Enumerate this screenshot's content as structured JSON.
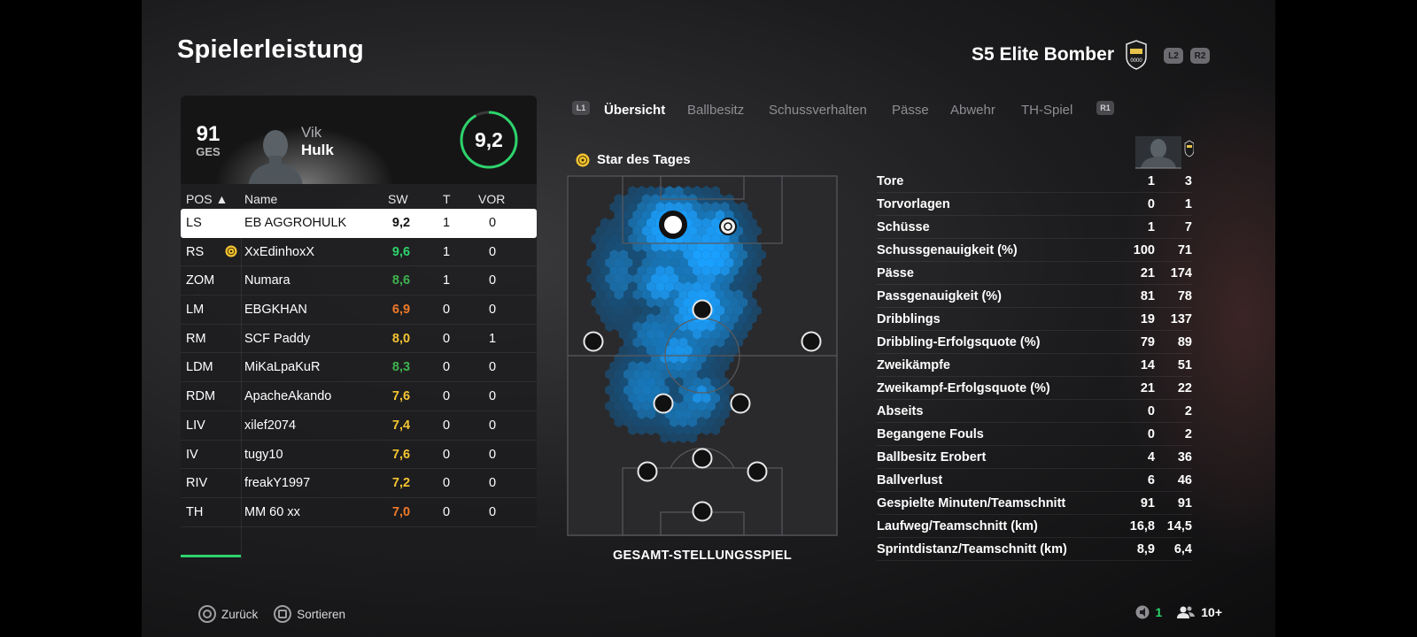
{
  "header": {
    "title": "Spielerleistung",
    "team_name": "S5 Elite Bomber",
    "tag_left": "L2",
    "tag_right": "R2"
  },
  "player_card": {
    "overall": "91",
    "overall_label": "GES",
    "first_name": "Vik",
    "last_name": "Hulk",
    "rating": "9,2",
    "rating_fraction": 0.92,
    "rating_color": "#2dd36b"
  },
  "table": {
    "headers": {
      "pos": "POS ▲",
      "name": "Name",
      "sw": "SW",
      "t": "T",
      "vor": "VOR"
    },
    "rows": [
      {
        "pos": "LS",
        "name": "EB AGGROHULK",
        "sw": "9,2",
        "t": "1",
        "vor": "0",
        "sw_color": "#111111",
        "selected": true,
        "star": false
      },
      {
        "pos": "RS",
        "name": "XxEdinhoxX",
        "sw": "9,6",
        "t": "1",
        "vor": "0",
        "sw_color": "#2dd36b",
        "selected": false,
        "star": true
      },
      {
        "pos": "ZOM",
        "name": "Numara",
        "sw": "8,6",
        "t": "1",
        "vor": "0",
        "sw_color": "#3fb24f",
        "selected": false,
        "star": false
      },
      {
        "pos": "LM",
        "name": "EBGKHAN",
        "sw": "6,9",
        "t": "0",
        "vor": "0",
        "sw_color": "#f07a2a",
        "selected": false,
        "star": false
      },
      {
        "pos": "RM",
        "name": "SCF Paddy",
        "sw": "8,0",
        "t": "0",
        "vor": "1",
        "sw_color": "#f4c431",
        "selected": false,
        "star": false
      },
      {
        "pos": "LDM",
        "name": "MiKaLpaKuR",
        "sw": "8,3",
        "t": "0",
        "vor": "0",
        "sw_color": "#3fb24f",
        "selected": false,
        "star": false
      },
      {
        "pos": "RDM",
        "name": "ApacheAkando",
        "sw": "7,6",
        "t": "0",
        "vor": "0",
        "sw_color": "#f4c431",
        "selected": false,
        "star": false
      },
      {
        "pos": "LIV",
        "name": "xilef2074",
        "sw": "7,4",
        "t": "0",
        "vor": "0",
        "sw_color": "#f4c431",
        "selected": false,
        "star": false
      },
      {
        "pos": "IV",
        "name": "tugy10",
        "sw": "7,6",
        "t": "0",
        "vor": "0",
        "sw_color": "#f4c431",
        "selected": false,
        "star": false
      },
      {
        "pos": "RIV",
        "name": "freakY1997",
        "sw": "7,2",
        "t": "0",
        "vor": "0",
        "sw_color": "#f4c431",
        "selected": false,
        "star": false
      },
      {
        "pos": "TH",
        "name": "MM 60 xx",
        "sw": "7,0",
        "t": "0",
        "vor": "0",
        "sw_color": "#f07a2a",
        "selected": false,
        "star": false
      }
    ]
  },
  "tabs": {
    "tag_left": "L1",
    "tag_right": "R1",
    "items": [
      "Übersicht",
      "Ballbesitz",
      "Schussverhalten",
      "Pässe",
      "Abwehr",
      "TH-Spiel"
    ],
    "active": 0
  },
  "star_of_day": "Star des Tages",
  "pitch_caption": "GESAMT-STELLUNGSSPIEL",
  "stats": [
    {
      "label": "Tore",
      "player": "1",
      "team": "3"
    },
    {
      "label": "Torvorlagen",
      "player": "0",
      "team": "1"
    },
    {
      "label": "Schüsse",
      "player": "1",
      "team": "7"
    },
    {
      "label": "Schussgenauigkeit (%)",
      "player": "100",
      "team": "71"
    },
    {
      "label": "Pässe",
      "player": "21",
      "team": "174"
    },
    {
      "label": "Passgenauigkeit (%)",
      "player": "81",
      "team": "78"
    },
    {
      "label": "Dribblings",
      "player": "19",
      "team": "137"
    },
    {
      "label": "Dribbling-Erfolgsquote (%)",
      "player": "79",
      "team": "89"
    },
    {
      "label": "Zweikämpfe",
      "player": "14",
      "team": "51"
    },
    {
      "label": "Zweikampf-Erfolgsquote (%)",
      "player": "21",
      "team": "22"
    },
    {
      "label": "Abseits",
      "player": "0",
      "team": "2"
    },
    {
      "label": "Begangene Fouls",
      "player": "0",
      "team": "2"
    },
    {
      "label": "Ballbesitz Erobert",
      "player": "4",
      "team": "36"
    },
    {
      "label": "Ballverlust",
      "player": "6",
      "team": "46"
    },
    {
      "label": "Gespielte Minuten/Teamschnitt",
      "player": "91",
      "team": "91"
    },
    {
      "label": "Laufweg/Teamschnitt (km)",
      "player": "16,8",
      "team": "14,5"
    },
    {
      "label": "Sprintdistanz/Teamschnitt (km)",
      "player": "8,9",
      "team": "6,4"
    }
  ],
  "footer": {
    "back": "Zurück",
    "sort": "Sortieren",
    "count": "1",
    "players": "10+",
    "accent": "#2dd36b"
  }
}
